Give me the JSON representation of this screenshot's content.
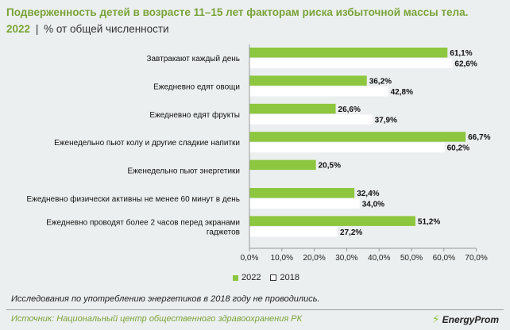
{
  "header": {
    "title": "Подверженность детей в возрасте 11–15 лет факторам риска избыточной массы тела.",
    "year": "2022",
    "separator": "|",
    "unit": "% от общей численности"
  },
  "colors": {
    "series_2022": "#8dc63f",
    "series_2018": "#ffffff",
    "title": "#7aa33a"
  },
  "chart_data": {
    "type": "bar",
    "orientation": "horizontal",
    "categories": [
      [
        "Завтракают каждый день"
      ],
      [
        "Ежедневно едят овощи"
      ],
      [
        "Ежедневно едят фрукты"
      ],
      [
        "Еженедельно пьют колу и другие сладкие напитки"
      ],
      [
        "Еженедельно пьют энергетики"
      ],
      [
        "Ежедневно физически активны не менее 60 минут в день"
      ],
      [
        "Ежедневно проводят более 2 часов перед экранами",
        "гаджетов"
      ]
    ],
    "series": [
      {
        "name": "2022",
        "values": [
          61.1,
          36.2,
          26.6,
          66.7,
          20.5,
          32.4,
          51.2
        ],
        "labels": [
          "61,1%",
          "36,2%",
          "26,6%",
          "66,7%",
          "20,5%",
          "32,4%",
          "51,2%"
        ]
      },
      {
        "name": "2018",
        "values": [
          62.6,
          42.8,
          37.9,
          60.2,
          null,
          34.0,
          27.2
        ],
        "labels": [
          "62,6%",
          "42,8%",
          "37,9%",
          "60,2%",
          "",
          "34,0%",
          "27,2%"
        ]
      }
    ],
    "xlim": [
      0,
      70
    ],
    "xticks": [
      0,
      10,
      20,
      30,
      40,
      50,
      60,
      70
    ],
    "xtick_labels": [
      "0,0%",
      "10,0%",
      "20,0%",
      "30,0%",
      "40,0%",
      "50,0%",
      "60,0%",
      "70,0%"
    ],
    "grid": false,
    "legend": "bottom-center"
  },
  "legend": {
    "item_2022": "2022",
    "item_2018": "2018"
  },
  "footer": {
    "note": "Исследования по употреблению энергетиков в 2018 году не проводились.",
    "source": "Источник: Национальный центр общественного здравоохранения РК",
    "logo": "EnergyProm"
  }
}
